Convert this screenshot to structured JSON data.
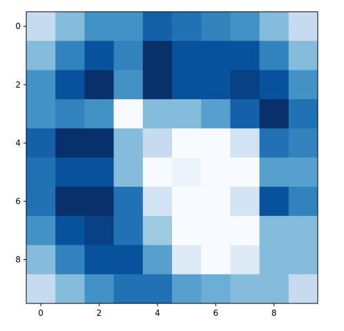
{
  "chart_data": {
    "type": "heatmap",
    "title": "",
    "xlabel": "",
    "ylabel": "",
    "colormap": "Blues",
    "vmin": 0,
    "vmax": 16,
    "grid": false,
    "x_ticks": [
      "0",
      "2",
      "4",
      "6",
      "8"
    ],
    "y_ticks": [
      "0",
      "2",
      "4",
      "6",
      "8"
    ],
    "values": [
      [
        4,
        7,
        10,
        10,
        13,
        12,
        11,
        10,
        7,
        4
      ],
      [
        7,
        11,
        14,
        11,
        16,
        14,
        14,
        14,
        11,
        7
      ],
      [
        10,
        14,
        17,
        10,
        17,
        14,
        14,
        15,
        14,
        10
      ],
      [
        10,
        11,
        10,
        0,
        7,
        7,
        9,
        13,
        16,
        12
      ],
      [
        13,
        16,
        17,
        7,
        4,
        0,
        0,
        3,
        12,
        11
      ],
      [
        12,
        14,
        14,
        7,
        0,
        1,
        0,
        0,
        9,
        9
      ],
      [
        12,
        16,
        16,
        12,
        3,
        0,
        0,
        3,
        14,
        11
      ],
      [
        10,
        14,
        15,
        12,
        6,
        0,
        0,
        0,
        7,
        7
      ],
      [
        7,
        11,
        14,
        14,
        9,
        2,
        0,
        2,
        7,
        7
      ],
      [
        4,
        7,
        10,
        12,
        12,
        9,
        8,
        7,
        7,
        4
      ]
    ]
  }
}
